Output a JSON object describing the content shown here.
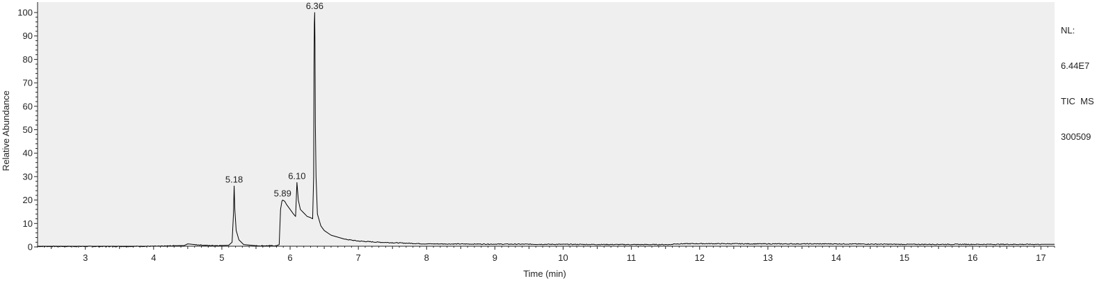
{
  "header": {
    "nl_label": "NL:",
    "nl_value": "6.44E7",
    "trace_label": "TIC  MS",
    "file_name": "300509"
  },
  "chart_data": {
    "type": "line",
    "xlabel": "Time (min)",
    "ylabel": "Relative Abundance",
    "xlim": [
      2.3,
      17.2
    ],
    "ylim": [
      0,
      100
    ],
    "x_ticks": [
      3,
      4,
      5,
      6,
      7,
      8,
      9,
      10,
      11,
      12,
      13,
      14,
      15,
      16,
      17
    ],
    "y_ticks": [
      0,
      10,
      20,
      30,
      40,
      50,
      60,
      70,
      80,
      90,
      100
    ],
    "grid": false,
    "background": "#efefef",
    "line_color": "#000000",
    "peak_labels": [
      {
        "x": 5.18,
        "y": 26,
        "text": "5.18"
      },
      {
        "x": 5.89,
        "y": 20,
        "text": "5.89"
      },
      {
        "x": 6.1,
        "y": 27.5,
        "text": "6.10"
      },
      {
        "x": 6.36,
        "y": 100,
        "text": "6.36"
      }
    ],
    "series": [
      {
        "points": [
          [
            2.3,
            0.2
          ],
          [
            3.5,
            0.2
          ],
          [
            4.1,
            0.3
          ],
          [
            4.3,
            0.5
          ],
          [
            4.45,
            0.6
          ],
          [
            4.5,
            1.3
          ],
          [
            4.6,
            1.0
          ],
          [
            4.8,
            0.6
          ],
          [
            5.0,
            0.6
          ],
          [
            5.1,
            0.7
          ],
          [
            5.15,
            2.0
          ],
          [
            5.17,
            14
          ],
          [
            5.18,
            26
          ],
          [
            5.19,
            16
          ],
          [
            5.21,
            7
          ],
          [
            5.25,
            3
          ],
          [
            5.32,
            1.0
          ],
          [
            5.5,
            0.5
          ],
          [
            5.8,
            0.5
          ],
          [
            5.84,
            1.0
          ],
          [
            5.86,
            16
          ],
          [
            5.88,
            19.5
          ],
          [
            5.89,
            20
          ],
          [
            5.92,
            19.5
          ],
          [
            5.95,
            18
          ],
          [
            6.0,
            16
          ],
          [
            6.05,
            14
          ],
          [
            6.08,
            13
          ],
          [
            6.09,
            20
          ],
          [
            6.1,
            27.5
          ],
          [
            6.12,
            20
          ],
          [
            6.15,
            16
          ],
          [
            6.2,
            14.5
          ],
          [
            6.25,
            13
          ],
          [
            6.3,
            12.5
          ],
          [
            6.33,
            12
          ],
          [
            6.345,
            30
          ],
          [
            6.35,
            77
          ],
          [
            6.355,
            95
          ],
          [
            6.36,
            100
          ],
          [
            6.365,
            85
          ],
          [
            6.37,
            52
          ],
          [
            6.38,
            30
          ],
          [
            6.4,
            14
          ],
          [
            6.45,
            9
          ],
          [
            6.5,
            7
          ],
          [
            6.6,
            5
          ],
          [
            6.8,
            3.3
          ],
          [
            7.0,
            2.5
          ],
          [
            7.3,
            2
          ],
          [
            7.7,
            1.6
          ],
          [
            8.0,
            1.3
          ],
          [
            9.0,
            1.2
          ],
          [
            10.0,
            1.1
          ],
          [
            11.0,
            1.0
          ],
          [
            11.6,
            1.0
          ],
          [
            11.62,
            1.3
          ],
          [
            12.0,
            1.4
          ],
          [
            13.0,
            1.3
          ],
          [
            14.0,
            1.3
          ],
          [
            15.0,
            1.1
          ],
          [
            16.0,
            1.1
          ],
          [
            17.0,
            1.1
          ],
          [
            17.2,
            1.1
          ]
        ]
      }
    ]
  }
}
